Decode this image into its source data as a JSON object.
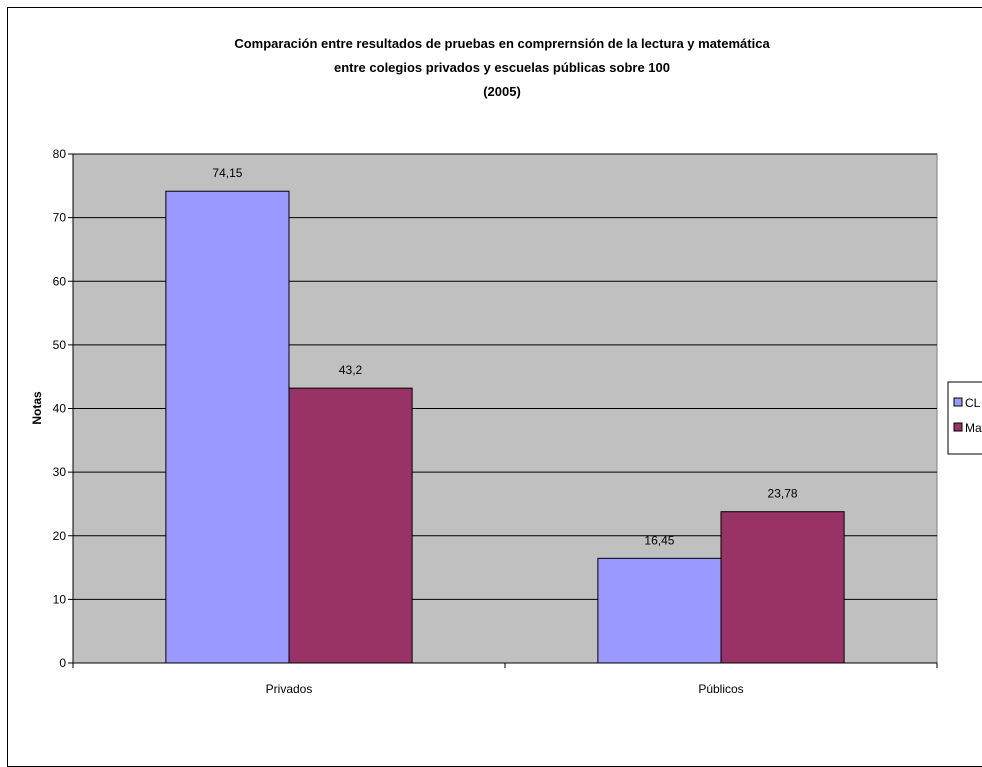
{
  "chart_data": {
    "type": "bar",
    "title": [
      "Comparación entre resultados de pruebas en comprernsión de la lectura y matemática",
      "entre colegios privados y escuelas públicas sobre 100",
      "(2005)"
    ],
    "categories": [
      "Privados",
      "Públicos"
    ],
    "series": [
      {
        "name": "CL",
        "values": [
          74.15,
          16.45
        ],
        "labels": [
          "74,15",
          "16,45"
        ],
        "color": "#9999ff"
      },
      {
        "name": "Mat",
        "values": [
          43.2,
          23.78
        ],
        "labels": [
          "43,2",
          "23,78"
        ],
        "color": "#993366"
      }
    ],
    "xlabel": "",
    "ylabel": "Notas",
    "ylim": [
      0,
      80
    ],
    "yticks": [
      0,
      10,
      20,
      30,
      40,
      50,
      60,
      70,
      80
    ],
    "grid": true,
    "plot_background": "#c0c0c0",
    "legend_position": "right"
  }
}
